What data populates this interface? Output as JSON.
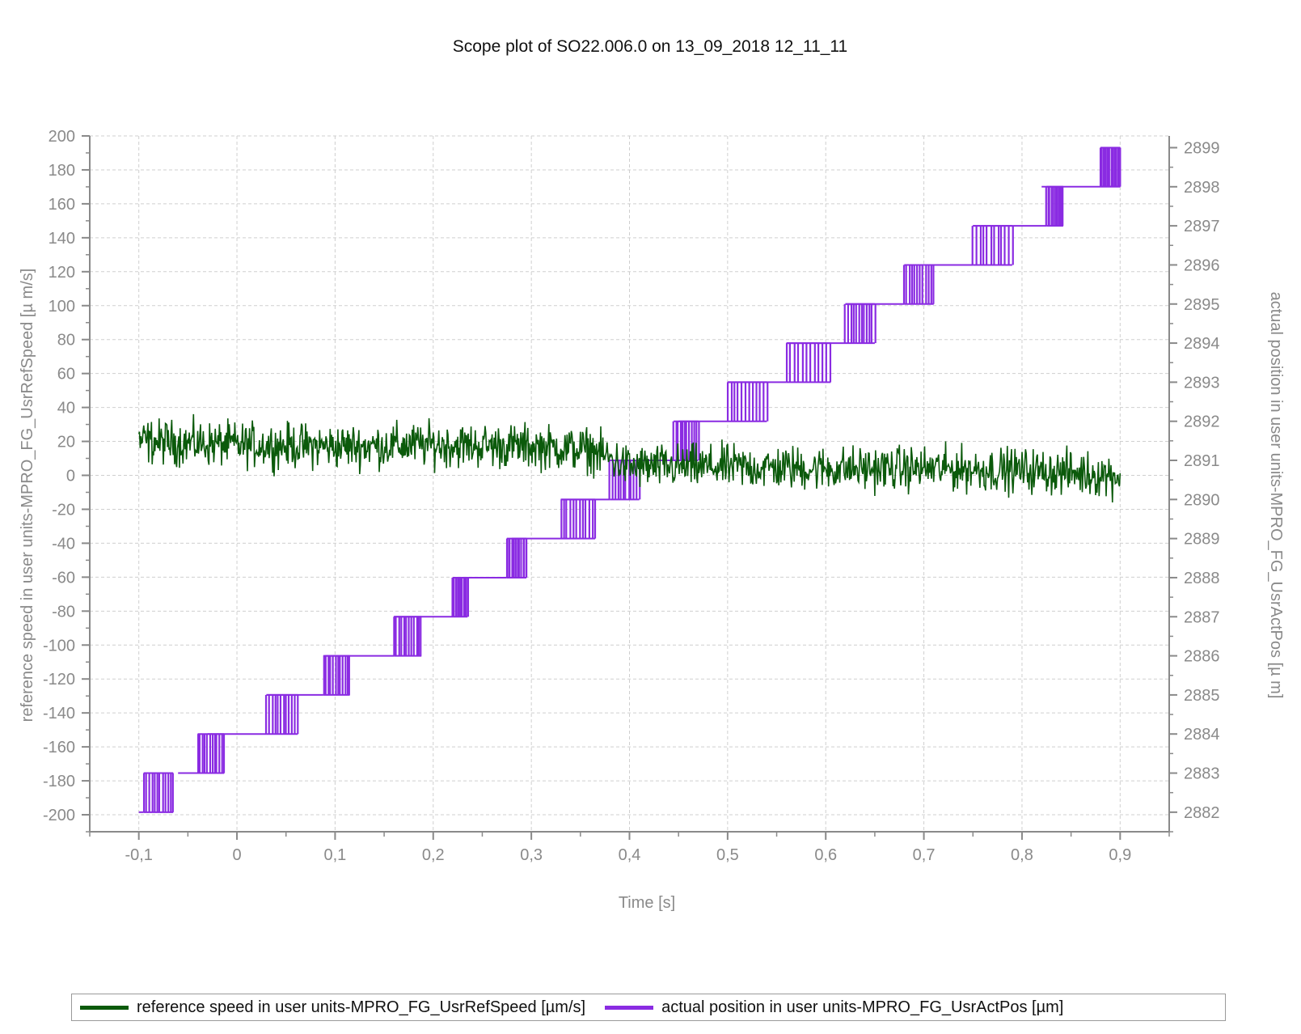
{
  "chart_data": {
    "type": "line",
    "title": "Scope plot of SO22.006.0 on 13_09_2018 12_11_11",
    "xlabel": "Time [s]",
    "ylabel_left": "reference speed in user units-MPRO_FG_UsrRefSpeed [µ m/s]",
    "ylabel_right": "actual position in user units-MPRO_FG_UsrActPos [µ m]",
    "xlim": [
      -0.15,
      0.95
    ],
    "ylim_left": [
      -210,
      200
    ],
    "ylim_right": [
      2881.5,
      2899.3
    ],
    "x_ticks": [
      "-0,1",
      "0",
      "0,1",
      "0,2",
      "0,3",
      "0,4",
      "0,5",
      "0,6",
      "0,7",
      "0,8",
      "0,9"
    ],
    "x_tick_values": [
      -0.1,
      0,
      0.1,
      0.2,
      0.3,
      0.4,
      0.5,
      0.6,
      0.7,
      0.8,
      0.9
    ],
    "y_left_ticks": [
      "200",
      "180",
      "160",
      "140",
      "120",
      "100",
      "80",
      "60",
      "40",
      "20",
      "0",
      "-20",
      "-40",
      "-60",
      "-80",
      "-100",
      "-120",
      "-140",
      "-160",
      "-180",
      "-200"
    ],
    "y_left_tick_values": [
      200,
      180,
      160,
      140,
      120,
      100,
      80,
      60,
      40,
      20,
      0,
      -20,
      -40,
      -60,
      -80,
      -100,
      -120,
      -140,
      -160,
      -180,
      -200
    ],
    "y_right_ticks": [
      "2899",
      "2898",
      "2897",
      "2896",
      "2895",
      "2894",
      "2893",
      "2892",
      "2891",
      "2890",
      "2889",
      "2888",
      "2887",
      "2886",
      "2885",
      "2884",
      "2883",
      "2882"
    ],
    "y_right_tick_values": [
      2899,
      2898,
      2897,
      2896,
      2895,
      2894,
      2893,
      2892,
      2891,
      2890,
      2889,
      2888,
      2887,
      2886,
      2885,
      2884,
      2883,
      2882
    ],
    "grid": true,
    "legend_position": "bottom",
    "series": [
      {
        "name": "reference speed in user units-MPRO_FG_UsrRefSpeed [µm/s]",
        "axis": "left",
        "color": "#0b5a0b",
        "noise_amplitude": 12,
        "x": [
          -0.1,
          0.0,
          0.1,
          0.2,
          0.3,
          0.36,
          0.4,
          0.5,
          0.6,
          0.7,
          0.8,
          0.9
        ],
        "y": [
          20,
          18,
          17,
          18,
          17,
          15,
          5,
          5,
          4,
          4,
          3,
          0
        ]
      },
      {
        "name": "actual position in user units-MPRO_FG_UsrActPos [µm]",
        "axis": "right",
        "color": "#8a2be2",
        "steps": [
          {
            "x0": -0.1,
            "x1": -0.06,
            "y": 2882.0,
            "switch_from": -0.095,
            "switch_to": -0.065
          },
          {
            "x0": -0.06,
            "x1": -0.03,
            "y": 2883.0,
            "switch_from": -0.04,
            "switch_to": -0.013
          },
          {
            "x0": -0.03,
            "x1": 0.03,
            "y": 2884.0,
            "switch_from": 0.03,
            "switch_to": 0.062
          },
          {
            "x0": 0.03,
            "x1": 0.09,
            "y": 2885.0,
            "switch_from": 0.088,
            "switch_to": 0.115
          },
          {
            "x0": 0.09,
            "x1": 0.16,
            "y": 2886.0,
            "switch_from": 0.16,
            "switch_to": 0.188
          },
          {
            "x0": 0.16,
            "x1": 0.22,
            "y": 2887.0,
            "switch_from": 0.22,
            "switch_to": 0.235
          },
          {
            "x0": 0.22,
            "x1": 0.28,
            "y": 2888.0,
            "switch_from": 0.275,
            "switch_to": 0.295
          },
          {
            "x0": 0.28,
            "x1": 0.33,
            "y": 2889.0,
            "switch_from": 0.33,
            "switch_to": 0.365
          },
          {
            "x0": 0.33,
            "x1": 0.39,
            "y": 2890.0,
            "switch_from": 0.38,
            "switch_to": 0.41
          },
          {
            "x0": 0.39,
            "x1": 0.45,
            "y": 2891.0,
            "switch_from": 0.445,
            "switch_to": 0.47
          },
          {
            "x0": 0.45,
            "x1": 0.5,
            "y": 2892.0,
            "switch_from": 0.5,
            "switch_to": 0.54
          },
          {
            "x0": 0.5,
            "x1": 0.56,
            "y": 2893.0,
            "switch_from": 0.56,
            "switch_to": 0.605
          },
          {
            "x0": 0.56,
            "x1": 0.62,
            "y": 2894.0,
            "switch_from": 0.62,
            "switch_to": 0.65
          },
          {
            "x0": 0.62,
            "x1": 0.69,
            "y": 2895.0,
            "switch_from": 0.68,
            "switch_to": 0.71
          },
          {
            "x0": 0.69,
            "x1": 0.75,
            "y": 2896.0,
            "switch_from": 0.75,
            "switch_to": 0.79
          },
          {
            "x0": 0.75,
            "x1": 0.82,
            "y": 2897.0,
            "switch_from": 0.825,
            "switch_to": 0.842
          },
          {
            "x0": 0.82,
            "x1": 0.88,
            "y": 2898.0,
            "switch_from": 0.88,
            "switch_to": 0.9
          },
          {
            "x0": 0.88,
            "x1": 0.9,
            "y": 2899.0,
            "switch_from": 0.9,
            "switch_to": 0.9
          }
        ]
      }
    ]
  },
  "legend": {
    "item1_label": "reference speed in user units-MPRO_FG_UsrRefSpeed [µm/s]",
    "item1_color": "#0b5a0b",
    "item2_label": "actual position in user units-MPRO_FG_UsrActPos [µm]",
    "item2_color": "#8a2be2"
  }
}
